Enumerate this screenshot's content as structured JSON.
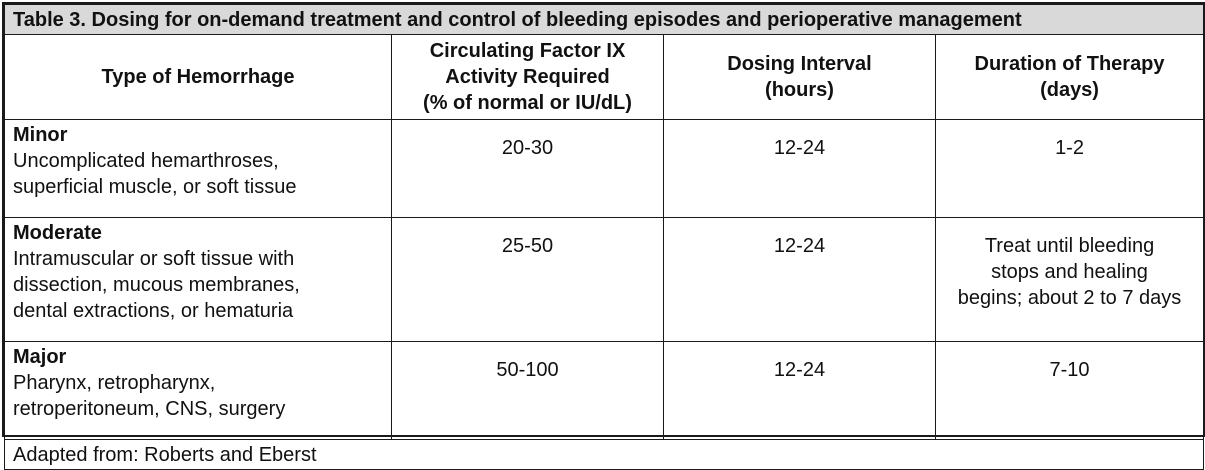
{
  "caption": "Table 3. Dosing for on-demand treatment and control of bleeding episodes and perioperative management",
  "columns": [
    [
      "Type of Hemorrhage"
    ],
    [
      "Circulating Factor IX",
      "Activity Required",
      "(% of normal or IU/dL)"
    ],
    [
      "Dosing Interval",
      "(hours)"
    ],
    [
      "Duration of Therapy",
      "(days)"
    ]
  ],
  "rows": [
    {
      "type": "Minor",
      "description": [
        "Uncomplicated hemarthroses,",
        "superficial muscle, or soft tissue"
      ],
      "factor_ix": "20-30",
      "interval": "12-24",
      "duration": [
        "1-2"
      ]
    },
    {
      "type": "Moderate",
      "description": [
        "Intramuscular or soft tissue with",
        "dissection, mucous membranes,",
        "dental extractions, or hematuria"
      ],
      "factor_ix": "25-50",
      "interval": "12-24",
      "duration": [
        "Treat until bleeding",
        "stops and healing",
        "begins; about 2 to 7 days"
      ]
    },
    {
      "type": "Major",
      "description": [
        "Pharynx, retropharynx,",
        "retroperitoneum, CNS, surgery"
      ],
      "factor_ix": "50-100",
      "interval": "12-24",
      "duration": [
        "7-10"
      ]
    }
  ],
  "footer": "Adapted from: Roberts and Eberst"
}
